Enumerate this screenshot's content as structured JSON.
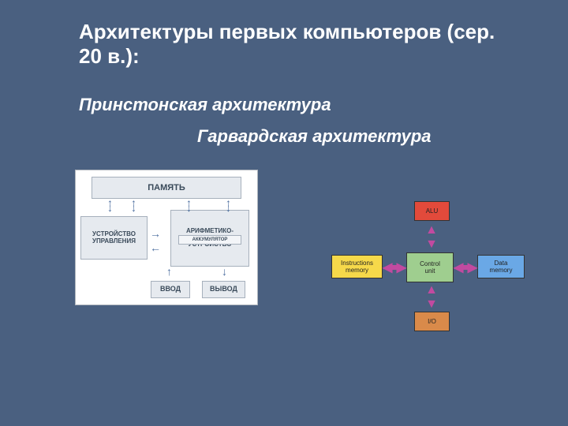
{
  "colors": {
    "background": "#4a6080",
    "text": "#ffffff",
    "princeton": {
      "panel_bg": "#ffffff",
      "box_bg": "#e6eaef",
      "box_border": "#a6b0bc",
      "box_text": "#3a4a5a",
      "arrow": "#4d6fa0"
    },
    "harvard": {
      "alu_bg": "#e24a3b",
      "ctrl_bg": "#9fce8f",
      "instr_bg": "#f6d94a",
      "data_bg": "#6aa8e6",
      "io_bg": "#d98a4a",
      "arrow": "#c24aa0",
      "box_text": "#222222"
    }
  },
  "title": "Архитектуры первых компьютеров (сер. 20 в.):",
  "subtitle_princeton": "Принстонская архитектура",
  "subtitle_harvard": "Гарвардская архитектура",
  "princeton": {
    "memory": "ПАМЯТЬ",
    "control": "УСТРОЙСТВО УПРАВЛЕНИЯ",
    "alu": "АРИФМЕТИКО-\nЛОГИЧЕСКОЕ\nУСТРОЙСТВО",
    "accumulator": "АККУМУЛЯТОР",
    "input": "ВВОД",
    "output": "ВЫВОД"
  },
  "harvard": {
    "alu": "ALU",
    "control": "Control\nunit",
    "instr_mem": "Instructions\nmemory",
    "data_mem": "Data\nmemory",
    "io": "I/O"
  }
}
